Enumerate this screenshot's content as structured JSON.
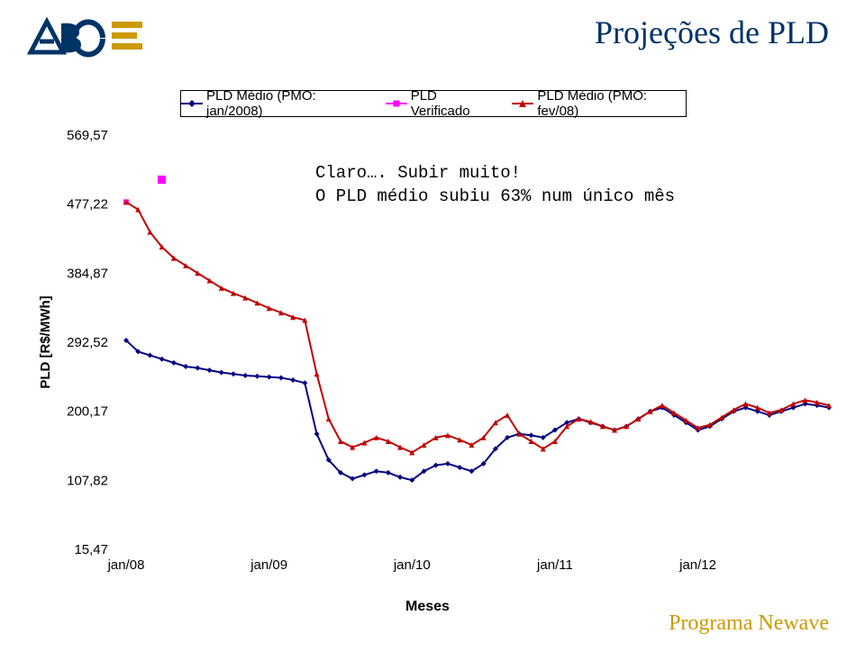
{
  "title": "Projeções de PLD",
  "program_label": "Programa Newave",
  "xaxis_title": "Meses",
  "annotation": {
    "line1": "Claro…. Subir muito!",
    "line2": "O PLD médio subiu 63% num único mês",
    "marker_color": "#ff00ff"
  },
  "legend": {
    "items": [
      {
        "label": "PLD Médio (PMO: jan/2008)",
        "color": "#000080",
        "marker": "diamond"
      },
      {
        "label": "PLD Verificado",
        "color": "#ff00ff",
        "marker": "square"
      },
      {
        "label": "PLD Médio (PMO: fev/08)",
        "color": "#c00000",
        "marker": "triangle"
      }
    ]
  },
  "chart": {
    "type": "line",
    "background_color": "#ffffff",
    "ylabel": "PLD [R$/MWh]",
    "label_fontsize": 15,
    "label_fontweight": "bold",
    "ylim": [
      15.47,
      569.57
    ],
    "yticks": [
      15.47,
      107.82,
      200.17,
      292.52,
      384.87,
      477.22,
      569.57
    ],
    "ytick_labels": [
      "15,47",
      "107,82",
      "200,17",
      "292,52",
      "384,87",
      "477,22",
      "569,57"
    ],
    "xticks": [
      0,
      12,
      24,
      36,
      48
    ],
    "xtick_labels": [
      "jan/08",
      "jan/09",
      "jan/10",
      "jan/11",
      "jan/12"
    ],
    "n_points": 60,
    "marker_size": 6,
    "line_width": 2,
    "series": [
      {
        "name": "pld_medio_jan2008",
        "color": "#000080",
        "marker": "diamond",
        "values": [
          295,
          280,
          275,
          270,
          265,
          260,
          258,
          255,
          252,
          250,
          248,
          247,
          246,
          245,
          242,
          238,
          170,
          135,
          118,
          110,
          115,
          120,
          118,
          112,
          108,
          120,
          128,
          130,
          125,
          120,
          130,
          150,
          165,
          170,
          168,
          165,
          175,
          185,
          190,
          185,
          180,
          175,
          180,
          190,
          200,
          205,
          195,
          185,
          175,
          180,
          190,
          200,
          205,
          200,
          195,
          200,
          205,
          210,
          208,
          205
        ]
      },
      {
        "name": "pld_verificado",
        "color": "#ff00ff",
        "marker": "square",
        "values": [
          480
        ]
      },
      {
        "name": "pld_medio_fev08",
        "color": "#c00000",
        "marker": "triangle",
        "values": [
          480,
          470,
          440,
          420,
          405,
          395,
          385,
          375,
          365,
          358,
          352,
          345,
          338,
          332,
          326,
          322,
          250,
          190,
          160,
          152,
          158,
          165,
          160,
          152,
          145,
          155,
          165,
          168,
          162,
          155,
          165,
          185,
          195,
          170,
          160,
          150,
          160,
          180,
          190,
          186,
          180,
          175,
          180,
          190,
          200,
          208,
          198,
          188,
          178,
          182,
          192,
          202,
          210,
          205,
          198,
          202,
          210,
          215,
          212,
          208
        ]
      }
    ]
  },
  "logo": {
    "text": "ABCE",
    "colors": {
      "stripes": "#cc9900",
      "text": "#003366"
    }
  }
}
